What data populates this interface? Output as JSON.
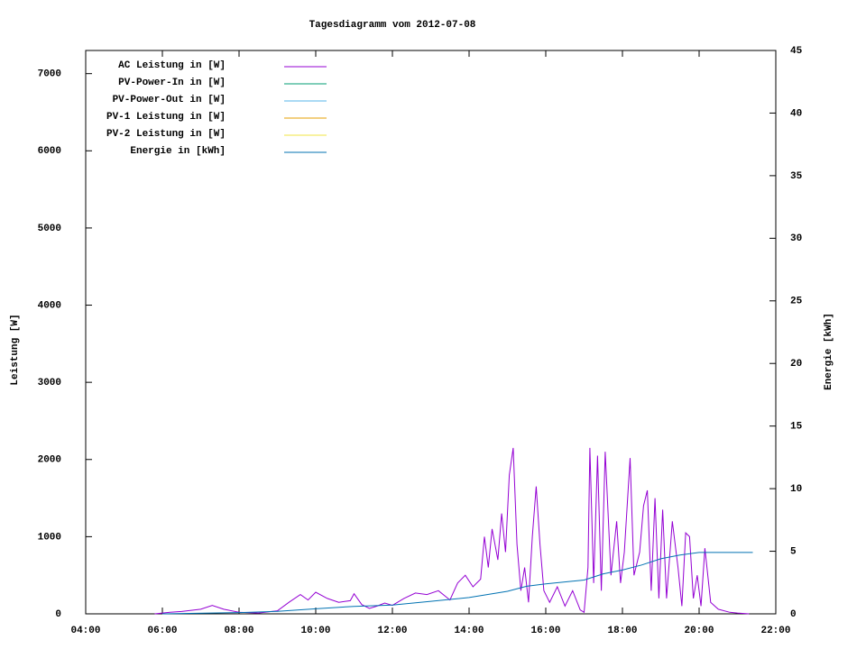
{
  "chart_data": {
    "type": "line",
    "title": "Tagesdiagramm vom 2012-07-08",
    "y_label": "Leistung [W]",
    "y2_label": "Energie [kWh]",
    "xlim": [
      4,
      22
    ],
    "xticks": [
      {
        "value": 4,
        "label": "04:00"
      },
      {
        "value": 6,
        "label": "06:00"
      },
      {
        "value": 8,
        "label": "08:00"
      },
      {
        "value": 10,
        "label": "10:00"
      },
      {
        "value": 12,
        "label": "12:00"
      },
      {
        "value": 14,
        "label": "14:00"
      },
      {
        "value": 16,
        "label": "16:00"
      },
      {
        "value": 18,
        "label": "18:00"
      },
      {
        "value": 20,
        "label": "20:00"
      },
      {
        "value": 22,
        "label": "22:00"
      }
    ],
    "ylim": [
      0,
      7300
    ],
    "yticks": [
      0,
      1000,
      2000,
      3000,
      4000,
      5000,
      6000,
      7000
    ],
    "y2lim": [
      0,
      45
    ],
    "y2ticks": [
      0,
      5,
      10,
      15,
      20,
      25,
      30,
      35,
      40,
      45
    ],
    "legend": "top-left",
    "series": [
      {
        "name": "AC Leistung in [W]",
        "color": "#9400d3",
        "x": [
          5.8,
          6.2,
          6.5,
          7.0,
          7.3,
          7.6,
          8.0,
          8.5,
          9.0,
          9.3,
          9.6,
          9.8,
          10.0,
          10.3,
          10.6,
          10.9,
          11.0,
          11.2,
          11.4,
          11.6,
          11.8,
          12.0,
          12.3,
          12.6,
          12.9,
          13.2,
          13.5,
          13.7,
          13.9,
          14.1,
          14.3,
          14.4,
          14.5,
          14.6,
          14.75,
          14.85,
          14.95,
          15.05,
          15.15,
          15.25,
          15.35,
          15.45,
          15.55,
          15.65,
          15.75,
          15.85,
          15.95,
          16.1,
          16.3,
          16.5,
          16.7,
          16.9,
          17.0,
          17.1,
          17.15,
          17.25,
          17.35,
          17.45,
          17.55,
          17.7,
          17.85,
          17.95,
          18.05,
          18.2,
          18.3,
          18.45,
          18.55,
          18.65,
          18.75,
          18.85,
          18.95,
          19.05,
          19.15,
          19.3,
          19.45,
          19.55,
          19.65,
          19.75,
          19.85,
          19.95,
          20.05,
          20.15,
          20.3,
          20.5,
          20.8,
          21.0,
          21.3
        ],
        "values": [
          0,
          20,
          30,
          60,
          110,
          60,
          20,
          10,
          40,
          150,
          250,
          180,
          280,
          200,
          150,
          170,
          260,
          120,
          70,
          100,
          140,
          110,
          200,
          270,
          250,
          300,
          180,
          400,
          500,
          350,
          450,
          1000,
          600,
          1100,
          700,
          1300,
          800,
          1800,
          2150,
          900,
          300,
          600,
          150,
          1000,
          1650,
          900,
          300,
          150,
          350,
          100,
          300,
          50,
          20,
          600,
          2150,
          400,
          2050,
          300,
          2100,
          500,
          1200,
          400,
          800,
          2020,
          500,
          800,
          1400,
          1600,
          300,
          1500,
          200,
          1350,
          200,
          1200,
          600,
          100,
          1050,
          1000,
          200,
          500,
          100,
          850,
          150,
          60,
          20,
          10,
          0
        ]
      },
      {
        "name": "PV-Power-In in [W]",
        "color": "#009e73",
        "x": [],
        "values": []
      },
      {
        "name": "PV-Power-Out in [W]",
        "color": "#56b4e9",
        "x": [],
        "values": []
      },
      {
        "name": "PV-1 Leistung in [W]",
        "color": "#e69f00",
        "x": [],
        "values": []
      },
      {
        "name": "PV-2 Leistung in [W]",
        "color": "#f0e442",
        "x": [],
        "values": []
      },
      {
        "name": "Energie in [kWh]",
        "color": "#0072b2",
        "axis": "y2",
        "x": [
          6.0,
          8.0,
          9.0,
          10.0,
          11.0,
          12.0,
          13.0,
          14.0,
          15.0,
          15.5,
          16.0,
          17.0,
          17.5,
          18.0,
          18.5,
          19.0,
          19.5,
          20.0,
          20.2,
          21.4
        ],
        "values": [
          0,
          0.1,
          0.2,
          0.4,
          0.6,
          0.7,
          1.0,
          1.3,
          1.8,
          2.2,
          2.4,
          2.7,
          3.2,
          3.5,
          3.9,
          4.4,
          4.7,
          4.9,
          4.9,
          4.9
        ]
      }
    ]
  }
}
